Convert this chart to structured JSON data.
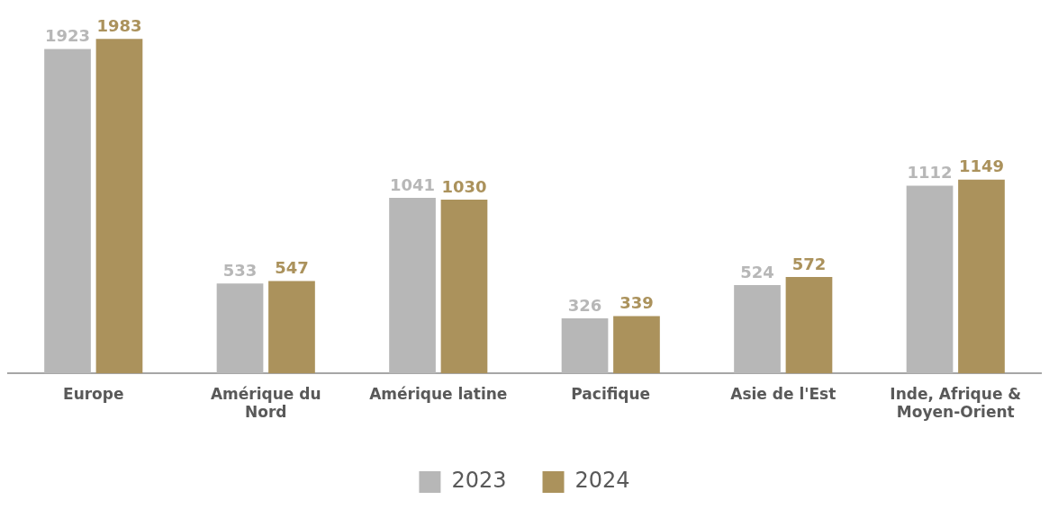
{
  "chart_data": {
    "type": "bar",
    "categories": [
      "Europe",
      "Amérique du Nord",
      "Amérique latine",
      "Pacifique",
      "Asie de l'Est",
      "Inde, Afrique & Moyen-Orient"
    ],
    "series": [
      {
        "name": "2023",
        "color": "#b7b7b7",
        "values": [
          1923,
          533,
          1041,
          326,
          524,
          1112
        ]
      },
      {
        "name": "2024",
        "color": "#ab925c",
        "values": [
          1983,
          547,
          1030,
          339,
          572,
          1149
        ]
      }
    ],
    "data_labels": true,
    "legend": "bottom",
    "grid": false
  }
}
